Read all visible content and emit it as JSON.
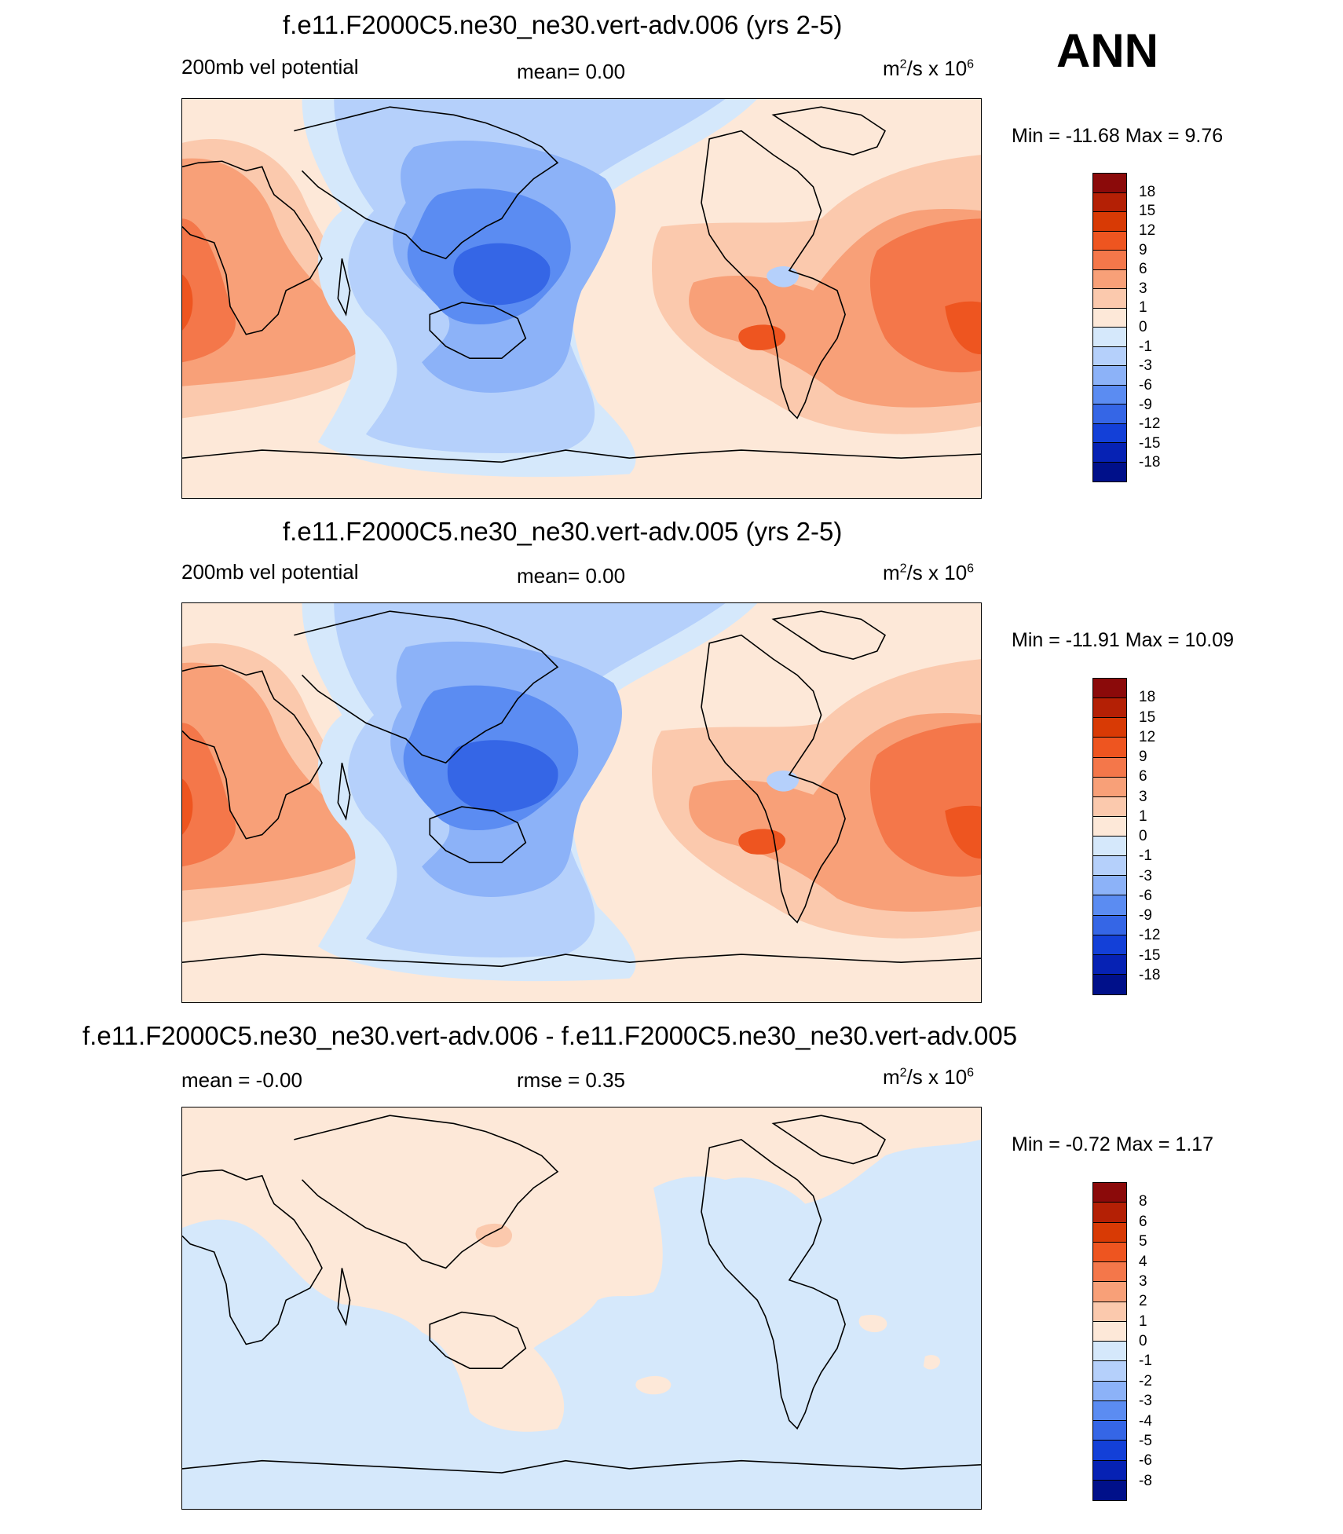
{
  "season": "ANN",
  "units_base": "m",
  "units_rest": "/s x 10",
  "units_sup1": "2",
  "units_sup2": "6",
  "panels": [
    {
      "id": "top",
      "title": "f.e11.F2000C5.ne30_ne30.vert-adv.006 (yrs 2-5)",
      "left_label": "200mb vel potential",
      "mid_label": "mean=   0.00",
      "minmax": "Min = -11.68 Max =   9.76",
      "levels": [
        "18",
        "15",
        "12",
        "9",
        "6",
        "3",
        "1",
        "0",
        "-1",
        "-3",
        "-6",
        "-9",
        "-12",
        "-15",
        "-18"
      ]
    },
    {
      "id": "middle",
      "title": "f.e11.F2000C5.ne30_ne30.vert-adv.005 (yrs 2-5)",
      "left_label": "200mb vel potential",
      "mid_label": "mean=   0.00",
      "minmax": "Min = -11.91 Max =  10.09",
      "levels": [
        "18",
        "15",
        "12",
        "9",
        "6",
        "3",
        "1",
        "0",
        "-1",
        "-3",
        "-6",
        "-9",
        "-12",
        "-15",
        "-18"
      ]
    },
    {
      "id": "bottom",
      "title": "f.e11.F2000C5.ne30_ne30.vert-adv.006 - f.e11.F2000C5.ne30_ne30.vert-adv.005",
      "left_label": "mean =  -0.00",
      "mid_label": "rmse =   0.35",
      "minmax": "Min =  -0.72 Max =   1.17",
      "levels": [
        "8",
        "6",
        "5",
        "4",
        "3",
        "2",
        "1",
        "0",
        "-1",
        "-2",
        "-3",
        "-4",
        "-5",
        "-6",
        "-8"
      ]
    }
  ],
  "colorbar_colors": [
    "#8b0a0a",
    "#b42005",
    "#d83a05",
    "#ee5520",
    "#f4774a",
    "#f8a078",
    "#fbc9ad",
    "#fde8d8",
    "#d5e8fb",
    "#b5d0fb",
    "#8cb2f8",
    "#5b8cf2",
    "#3566e6",
    "#1340d8",
    "#0622b4",
    "#00108a"
  ],
  "fill_colors": {
    "red1": "#fde8d8",
    "red2": "#fbc9ad",
    "red3": "#f8a078",
    "red4": "#f4774a",
    "red5": "#ee5520",
    "blue1": "#d5e8fb",
    "blue2": "#b5d0fb",
    "blue3": "#8cb2f8",
    "blue4": "#5b8cf2",
    "blue5": "#3566e6"
  }
}
